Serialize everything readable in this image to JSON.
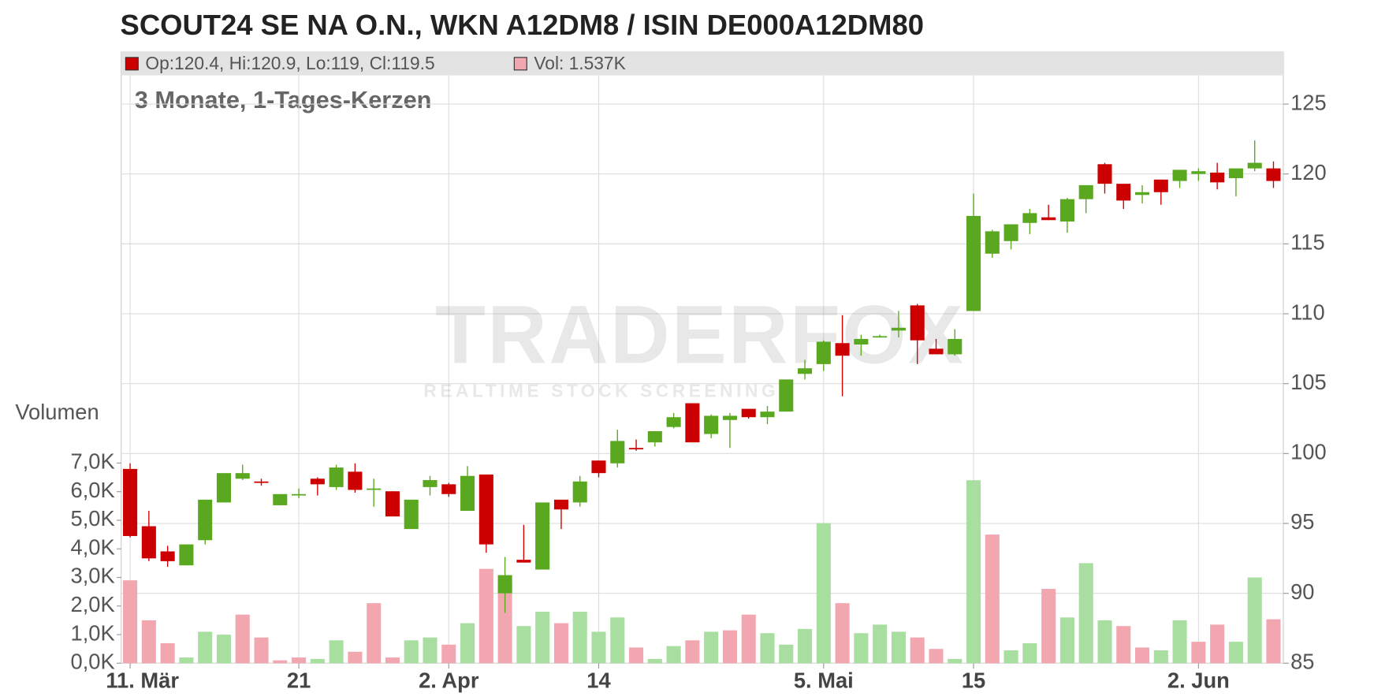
{
  "chart_data": {
    "type": "candlestick",
    "title": "SCOUT24 SE NA O.N., WKN A12DM8 / ISIN DE000A12DM80",
    "subtitle": "3 Monate, 1-Tages-Kerzen",
    "legend": [
      {
        "label": "Op:120.4, Hi:120.9, Lo:119, Cl:119.5",
        "color": "#cc0000"
      },
      {
        "label": "Vol: 1.537K",
        "color": "#f2a7b0"
      }
    ],
    "watermark": {
      "text": "TRADERFOX",
      "subtext": "REALTIME STOCK SCREENING"
    },
    "categories": [
      "11. Mär",
      null,
      null,
      null,
      null,
      null,
      null,
      null,
      null,
      "21",
      null,
      null,
      null,
      null,
      null,
      null,
      null,
      "2. Apr",
      null,
      null,
      null,
      null,
      null,
      null,
      null,
      "14",
      null,
      null,
      null,
      null,
      null,
      null,
      null,
      null,
      null,
      null,
      null,
      "5. Mai",
      null,
      null,
      null,
      null,
      null,
      null,
      null,
      "15",
      null,
      null,
      null,
      null,
      null,
      null,
      null,
      null,
      null,
      null,
      null,
      "2. Jun",
      null,
      null,
      null,
      null
    ],
    "open": [
      98.9,
      94.8,
      93.0,
      92.0,
      93.8,
      96.5,
      98.2,
      98.0,
      96.3,
      97.0,
      98.2,
      97.6,
      98.7,
      97.4,
      97.3,
      94.6,
      97.6,
      97.8,
      95.9,
      98.5,
      90.0,
      92.4,
      91.7,
      96.7,
      96.5,
      99.5,
      99.3,
      100.4,
      100.8,
      101.9,
      103.6,
      101.4,
      102.4,
      103.2,
      102.6,
      103.0,
      105.7,
      106.4,
      107.9,
      107.8,
      108.3,
      108.8,
      110.6,
      107.5,
      107.1,
      110.2,
      114.3,
      115.2,
      116.5,
      116.9,
      116.6,
      118.2,
      120.7,
      119.3,
      118.5,
      119.6,
      119.5,
      120.0,
      120.1,
      119.7,
      120.4,
      120.4
    ],
    "high": [
      99.3,
      95.9,
      93.4,
      93.5,
      96.7,
      98.6,
      99.2,
      98.2,
      97.1,
      97.5,
      98.3,
      99.2,
      99.3,
      98.2,
      97.3,
      96.7,
      98.4,
      97.9,
      99.1,
      98.5,
      92.6,
      94.9,
      96.5,
      96.7,
      98.4,
      99.5,
      101.7,
      101.0,
      101.6,
      102.9,
      103.6,
      102.8,
      102.9,
      103.2,
      103.4,
      105.3,
      106.7,
      108.1,
      109.9,
      108.5,
      108.5,
      110.2,
      110.7,
      108.2,
      108.9,
      118.6,
      116.0,
      116.4,
      117.5,
      117.8,
      118.3,
      119.2,
      120.8,
      119.3,
      119.2,
      119.6,
      120.3,
      120.4,
      120.8,
      120.4,
      122.4,
      120.9
    ],
    "low": [
      94.0,
      92.3,
      91.9,
      92.0,
      93.5,
      96.5,
      98.1,
      97.7,
      96.3,
      96.8,
      97.0,
      97.4,
      97.2,
      96.2,
      95.5,
      94.6,
      97.0,
      96.9,
      95.9,
      92.9,
      88.6,
      92.2,
      91.7,
      94.6,
      96.2,
      98.3,
      99.0,
      100.2,
      100.5,
      101.8,
      100.8,
      101.1,
      100.4,
      102.5,
      102.1,
      103.0,
      105.3,
      105.9,
      104.1,
      107.0,
      108.3,
      108.3,
      106.4,
      107.1,
      107.0,
      110.2,
      114.0,
      114.6,
      115.7,
      116.7,
      115.8,
      117.2,
      118.6,
      117.5,
      117.9,
      117.8,
      119.0,
      119.5,
      118.9,
      118.4,
      120.2,
      119.0
    ],
    "close": [
      94.1,
      92.5,
      92.3,
      93.5,
      96.7,
      98.6,
      98.6,
      97.9,
      97.1,
      97.1,
      97.8,
      99.0,
      97.4,
      97.5,
      95.5,
      96.7,
      98.1,
      97.1,
      98.4,
      93.5,
      91.3,
      92.2,
      96.5,
      96.0,
      98.0,
      98.6,
      100.9,
      100.3,
      101.6,
      102.6,
      100.8,
      102.7,
      102.7,
      102.6,
      103.0,
      105.3,
      106.1,
      108.0,
      107.0,
      108.2,
      108.4,
      109.0,
      108.1,
      107.1,
      108.2,
      117.0,
      115.9,
      116.4,
      117.2,
      116.7,
      118.2,
      119.2,
      119.3,
      118.1,
      118.7,
      118.7,
      120.3,
      120.2,
      119.4,
      120.4,
      120.8,
      119.5
    ],
    "up_color": "#5aa820",
    "down_color": "#cc0000",
    "volume": {
      "label": "Volumen",
      "values": [
        2.9,
        1.5,
        0.7,
        0.2,
        1.1,
        1.0,
        1.7,
        0.9,
        0.1,
        0.2,
        0.15,
        0.8,
        0.4,
        2.1,
        0.2,
        0.8,
        0.9,
        0.65,
        1.4,
        3.3,
        2.8,
        1.3,
        1.8,
        1.4,
        1.8,
        1.1,
        1.6,
        0.55,
        0.15,
        0.6,
        0.8,
        1.1,
        1.15,
        1.7,
        1.05,
        0.65,
        1.2,
        4.9,
        2.1,
        1.05,
        1.35,
        1.1,
        0.9,
        0.5,
        0.15,
        6.4,
        4.5,
        0.45,
        0.7,
        2.6,
        1.6,
        3.5,
        1.5,
        1.3,
        0.55,
        0.45,
        1.5,
        0.75,
        1.35,
        0.75,
        3.0,
        1.537
      ],
      "colors": [
        "#f2a7b0",
        "#f2a7b0",
        "#f2a7b0",
        "#a8dea0",
        "#a8dea0",
        "#a8dea0",
        "#f2a7b0",
        "#f2a7b0",
        "#f2a7b0",
        "#f2a7b0",
        "#a8dea0",
        "#a8dea0",
        "#f2a7b0",
        "#f2a7b0",
        "#f2a7b0",
        "#a8dea0",
        "#a8dea0",
        "#f2a7b0",
        "#a8dea0",
        "#f2a7b0",
        "#f2a7b0",
        "#a8dea0",
        "#a8dea0",
        "#f2a7b0",
        "#a8dea0",
        "#a8dea0",
        "#a8dea0",
        "#f2a7b0",
        "#a8dea0",
        "#a8dea0",
        "#f2a7b0",
        "#a8dea0",
        "#f2a7b0",
        "#f2a7b0",
        "#a8dea0",
        "#a8dea0",
        "#a8dea0",
        "#a8dea0",
        "#f2a7b0",
        "#a8dea0",
        "#a8dea0",
        "#a8dea0",
        "#f2a7b0",
        "#f2a7b0",
        "#a8dea0",
        "#a8dea0",
        "#f2a7b0",
        "#a8dea0",
        "#a8dea0",
        "#f2a7b0",
        "#a8dea0",
        "#a8dea0",
        "#a8dea0",
        "#f2a7b0",
        "#f2a7b0",
        "#a8dea0",
        "#a8dea0",
        "#f2a7b0",
        "#f2a7b0",
        "#a8dea0",
        "#a8dea0",
        "#f2a7b0"
      ]
    },
    "ylim": [
      85,
      125
    ],
    "yticks": [
      85,
      90,
      95,
      100,
      105,
      110,
      115,
      120,
      125
    ],
    "y2lim": [
      0,
      7
    ],
    "y2ticks": [
      {
        "value": 0,
        "label": "0,0K"
      },
      {
        "value": 1,
        "label": "1,0K"
      },
      {
        "value": 2,
        "label": "2,0K"
      },
      {
        "value": 3,
        "label": "3,0K"
      },
      {
        "value": 4,
        "label": "4,0K"
      },
      {
        "value": 5,
        "label": "5,0K"
      },
      {
        "value": 6,
        "label": "6,0K"
      },
      {
        "value": 7,
        "label": "7,0K"
      }
    ],
    "grid": true
  }
}
